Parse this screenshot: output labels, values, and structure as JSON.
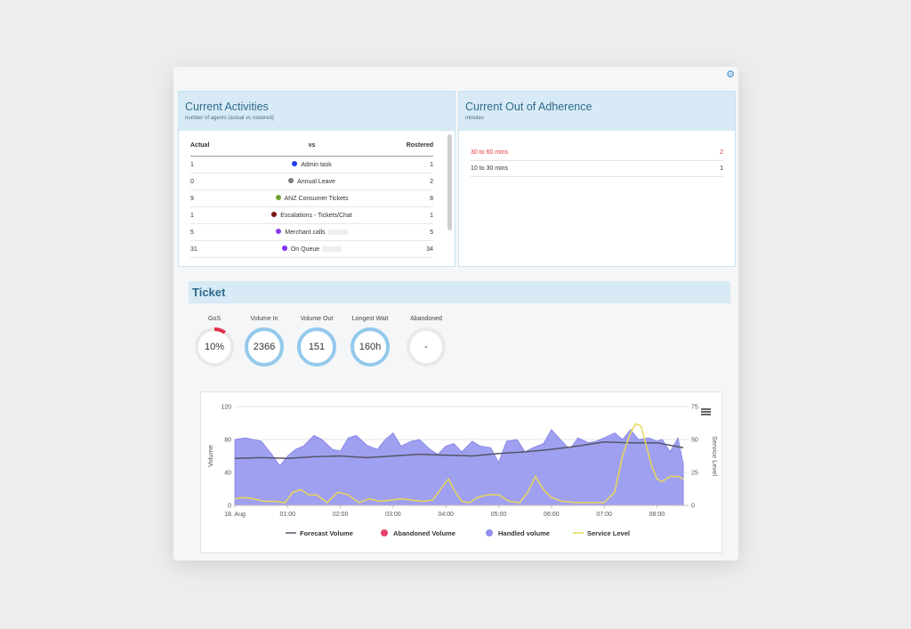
{
  "settings_icon": "gear-icon",
  "current_activities": {
    "title": "Current Activities",
    "subtitle": "number of agents (actual vs rostered)",
    "headers": {
      "actual": "Actual",
      "vs": "vs",
      "rostered": "Rostered"
    },
    "rows": [
      {
        "actual": "1",
        "label": "Admin task",
        "rostered": "1",
        "color": "#1f3cf0"
      },
      {
        "actual": "0",
        "label": "Annual Leave",
        "rostered": "2",
        "color": "#7d7d7d"
      },
      {
        "actual": "9",
        "label": "ANZ Consumer Tickets",
        "rostered": "8",
        "color": "#6aa22a"
      },
      {
        "actual": "1",
        "label": "Escalations - Tickets/Chat",
        "rostered": "1",
        "color": "#7b1414"
      },
      {
        "actual": "5",
        "label": "Merchant calls",
        "rostered": "5",
        "color": "#8a3cf0"
      },
      {
        "actual": "31",
        "label": "On Queue",
        "rostered": "34",
        "color": "#7a2ff0"
      }
    ]
  },
  "out_of_adherence": {
    "title": "Current Out of Adherence",
    "subtitle": "minutes",
    "rows": [
      {
        "label": "30 to 60 mins",
        "value": "2",
        "color": "#e53a3a"
      },
      {
        "label": "10 to 30 mins",
        "value": "1",
        "color": "#333333"
      }
    ]
  },
  "ticket": {
    "title": "Ticket",
    "kpis": [
      {
        "label": "GoS",
        "value": "10%",
        "level_pct": 10
      },
      {
        "label": "Volume In",
        "value": "2366"
      },
      {
        "label": "Volume Out",
        "value": "151"
      },
      {
        "label": "Longest Wait",
        "value": "160h"
      },
      {
        "label": "Abandoned",
        "value": "-"
      }
    ]
  },
  "chart_data": {
    "type": "area",
    "menu_icon": "hamburger-menu-icon",
    "ylabel": "Volume",
    "y2label": "Service Level",
    "ylim": [
      0,
      120
    ],
    "y2lim": [
      0,
      75
    ],
    "yticks": [
      "0",
      "40",
      "80",
      "120"
    ],
    "y2ticks": [
      "0",
      "25",
      "50",
      "75"
    ],
    "xticks": [
      "18. Aug",
      "01:00",
      "02:00",
      "03:00",
      "04:00",
      "05:00",
      "06:00",
      "07:00",
      "08:00"
    ],
    "xrange_hours": [
      0,
      8.6
    ],
    "legend": [
      "Forecast Volume",
      "Abandoned Volume",
      "Handled volume",
      "Service Level"
    ],
    "colors": {
      "handled": "#8f8fef",
      "forecast": "#555566",
      "abandoned": "#e8436a",
      "service": "#e8d85a"
    },
    "handled_volume": {
      "x": [
        0,
        0.2,
        0.5,
        0.7,
        0.85,
        1.0,
        1.15,
        1.3,
        1.5,
        1.65,
        1.85,
        2.0,
        2.15,
        2.3,
        2.5,
        2.7,
        2.85,
        3.0,
        3.15,
        3.35,
        3.5,
        3.7,
        3.85,
        4.0,
        4.15,
        4.3,
        4.5,
        4.65,
        4.85,
        5.0,
        5.15,
        5.35,
        5.5,
        5.65,
        5.85,
        6.0,
        6.2,
        6.35,
        6.5,
        6.7,
        6.85,
        7.0,
        7.2,
        7.35,
        7.5,
        7.65,
        7.85,
        8.0,
        8.1,
        8.25,
        8.4,
        8.5
      ],
      "y": [
        80,
        82,
        78,
        62,
        48,
        60,
        68,
        72,
        85,
        80,
        68,
        66,
        82,
        85,
        73,
        68,
        80,
        88,
        72,
        78,
        80,
        68,
        62,
        72,
        75,
        65,
        78,
        72,
        70,
        52,
        78,
        80,
        65,
        70,
        75,
        92,
        78,
        68,
        82,
        76,
        78,
        82,
        88,
        80,
        92,
        80,
        82,
        78,
        80,
        65,
        82,
        50
      ]
    },
    "forecast_volume": {
      "x": [
        0,
        0.5,
        1.0,
        1.5,
        2.0,
        2.5,
        3.0,
        3.5,
        4.0,
        4.5,
        5.0,
        5.5,
        6.0,
        6.5,
        7.0,
        7.5,
        8.0,
        8.5
      ],
      "y": [
        57,
        58,
        57,
        59,
        60,
        58,
        60,
        62,
        61,
        60,
        63,
        65,
        68,
        72,
        77,
        76,
        76,
        70
      ]
    },
    "service_level": {
      "x": [
        0,
        0.15,
        0.35,
        0.55,
        0.75,
        0.95,
        1.1,
        1.25,
        1.4,
        1.55,
        1.75,
        1.95,
        2.15,
        2.35,
        2.55,
        2.75,
        2.95,
        3.15,
        3.35,
        3.55,
        3.75,
        3.95,
        4.05,
        4.15,
        4.3,
        4.45,
        4.6,
        4.8,
        5.0,
        5.2,
        5.4,
        5.55,
        5.7,
        5.85,
        6.0,
        6.2,
        6.5,
        6.8,
        7.0,
        7.2,
        7.35,
        7.5,
        7.6,
        7.7,
        7.8,
        7.9,
        8.0,
        8.1,
        8.25,
        8.4,
        8.5
      ],
      "y": [
        5,
        6,
        5,
        3,
        3,
        2,
        10,
        12,
        8,
        8,
        2,
        10,
        8,
        2,
        5,
        3,
        4,
        5,
        4,
        3,
        4,
        15,
        20,
        12,
        3,
        2,
        6,
        8,
        8,
        3,
        2,
        10,
        22,
        12,
        6,
        3,
        2,
        2,
        2,
        10,
        38,
        55,
        62,
        60,
        45,
        30,
        20,
        18,
        22,
        22,
        20
      ]
    }
  }
}
